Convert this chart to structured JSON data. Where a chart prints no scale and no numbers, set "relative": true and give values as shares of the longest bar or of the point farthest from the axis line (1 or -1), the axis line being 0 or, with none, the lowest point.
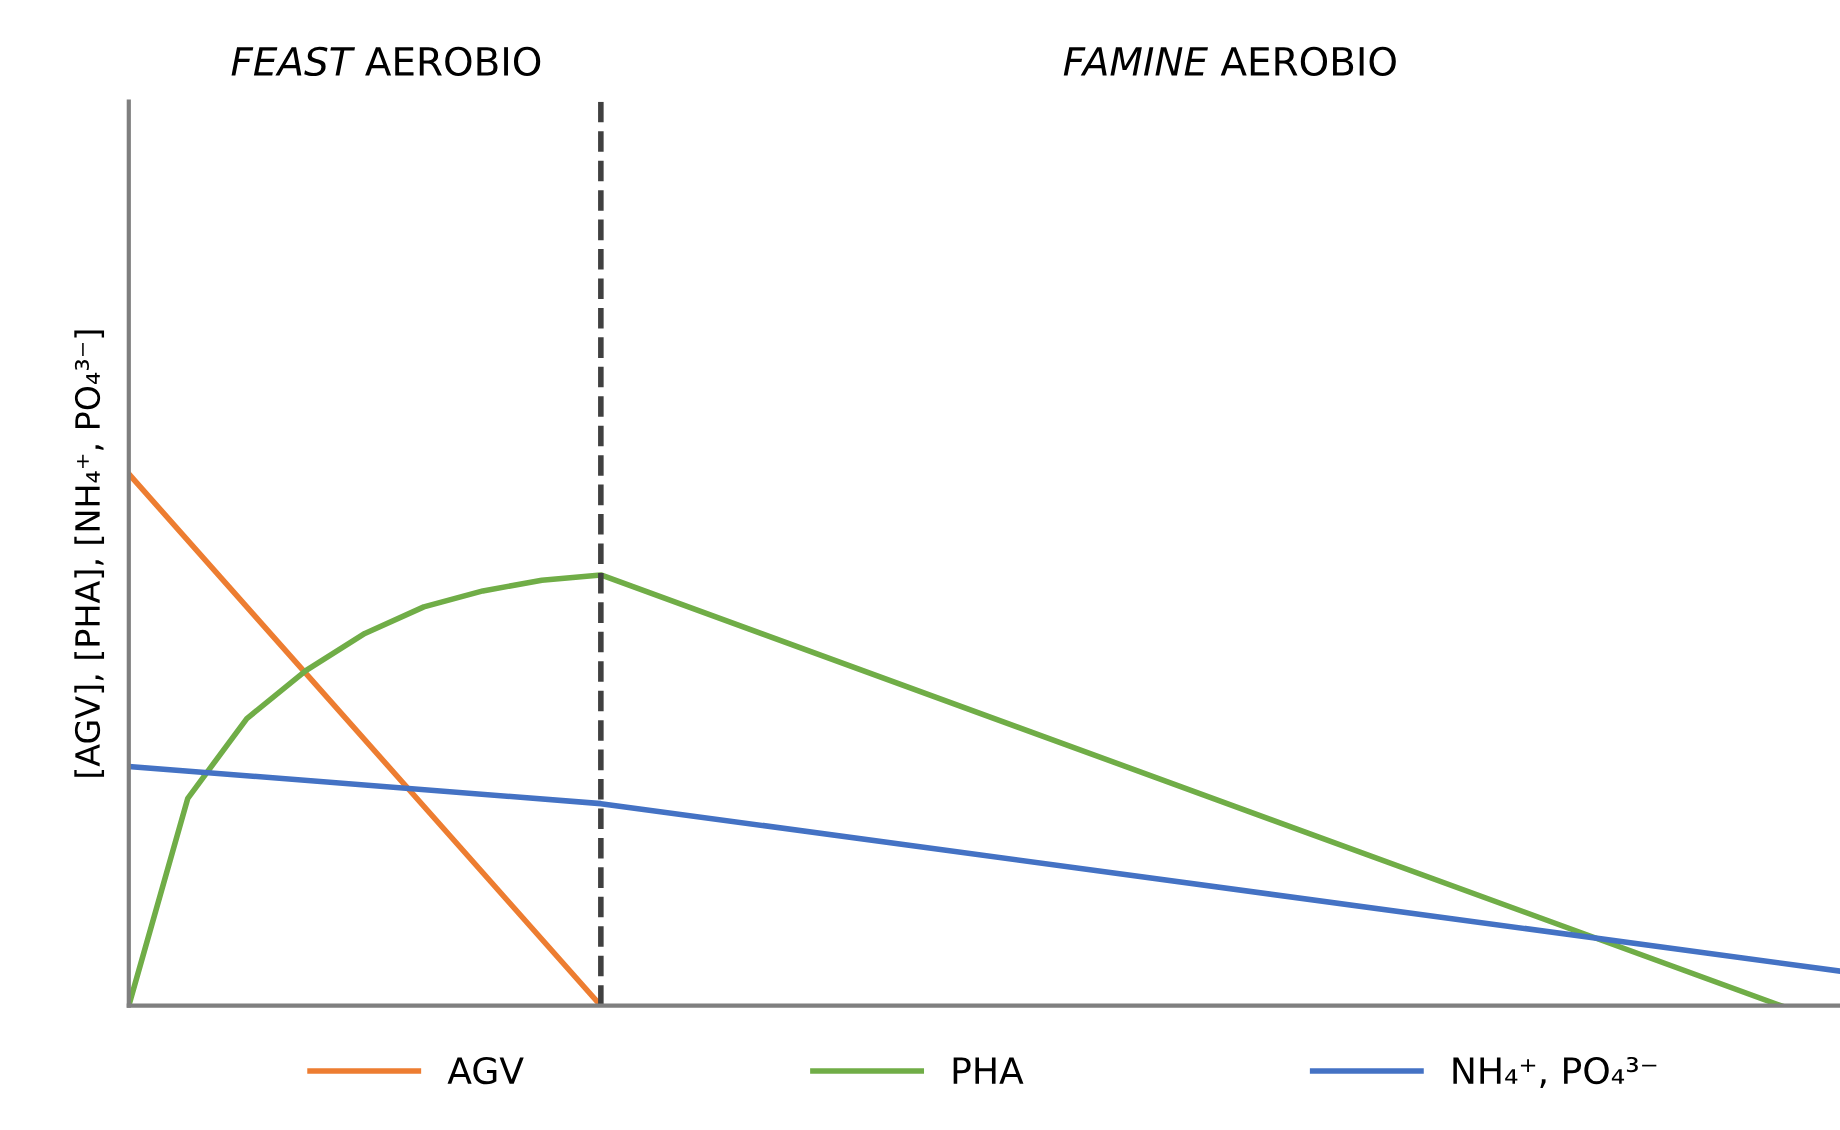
{
  "chart_data": {
    "type": "line",
    "relative": true,
    "ylabel": "[AGV], [PHA], [NH₄⁺, PO₄³⁻]",
    "categories": [
      null,
      null,
      null,
      null,
      null,
      null,
      null,
      null,
      null,
      null,
      null,
      null,
      null,
      null,
      null,
      null,
      null,
      null,
      null,
      null,
      null,
      null,
      null,
      null,
      null,
      null,
      null,
      null,
      null,
      null
    ],
    "series": [
      {
        "name": "AGV",
        "color": "#ed7d31",
        "values": [
          1,
          null,
          null,
          null,
          null,
          null,
          null,
          null,
          0,
          null,
          null,
          null,
          null,
          null,
          null,
          null,
          null,
          null,
          null,
          null,
          null,
          null,
          null,
          null,
          null,
          null,
          null,
          null,
          null,
          null
        ]
      },
      {
        "name": "PHA",
        "color": "#70ad47",
        "values": [
          0,
          0.39,
          0.54,
          0.63,
          0.7,
          0.75,
          0.78,
          0.8,
          0.81,
          null,
          null,
          null,
          null,
          null,
          null,
          null,
          null,
          null,
          null,
          null,
          null,
          null,
          null,
          null,
          null,
          null,
          null,
          null,
          0,
          null
        ]
      },
      {
        "name": "NH₄⁺, PO₄³⁻",
        "color": "#4472c4",
        "values": [
          0.45,
          null,
          null,
          null,
          null,
          null,
          null,
          null,
          0.38,
          null,
          null,
          null,
          null,
          null,
          null,
          null,
          null,
          null,
          null,
          null,
          null,
          null,
          null,
          null,
          null,
          null,
          null,
          null,
          null,
          0.065
        ]
      }
    ],
    "annotations": [
      "FEAST AEROBIO",
      "FAMINE AEROBIO"
    ],
    "legend": "bottom",
    "marker": "none",
    "line_style": "solid"
  }
}
